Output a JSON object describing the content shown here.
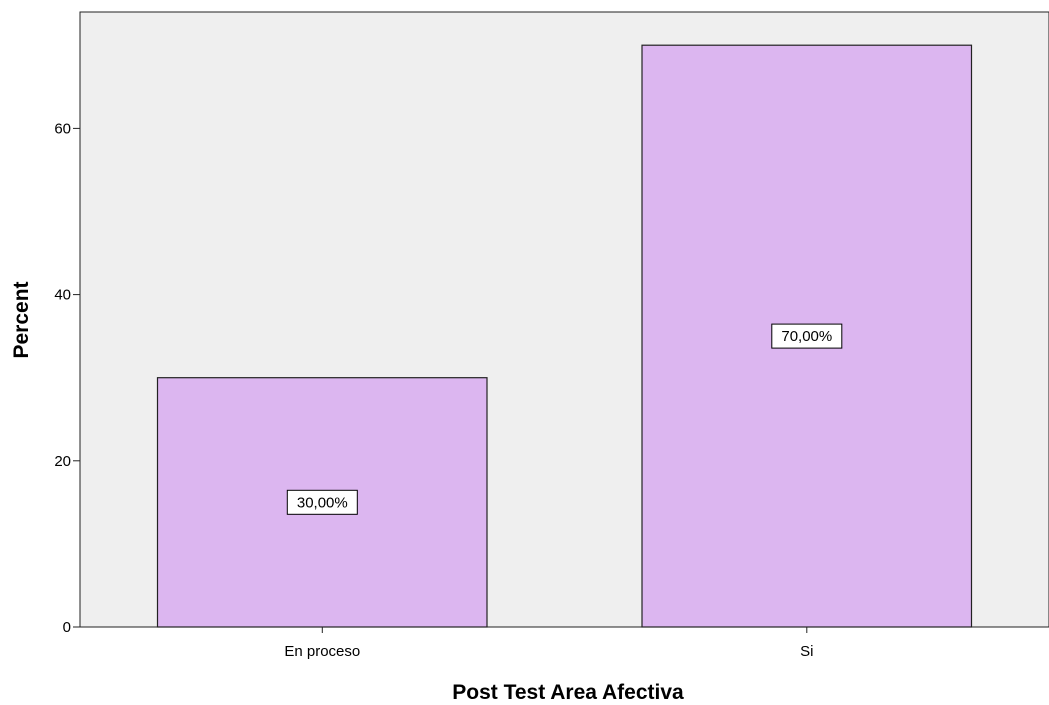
{
  "chart_data": {
    "type": "bar",
    "categories": [
      "En proceso",
      "Si"
    ],
    "values": [
      30,
      70
    ],
    "data_labels": [
      "30,00%",
      "70,00%"
    ],
    "xlabel": "Post Test Area Afectiva",
    "ylabel": "Percent",
    "ylim": [
      0,
      74
    ],
    "yticks": [
      0,
      20,
      40,
      60
    ],
    "ytick_labels": [
      "0",
      "20",
      "40",
      "60"
    ],
    "grid": false,
    "legend": "none",
    "colors": {
      "bar_fill": "#dcb6f0",
      "bar_stroke": "#222222",
      "plot_background": "#efefef",
      "label_box_fill": "#ffffff"
    }
  }
}
